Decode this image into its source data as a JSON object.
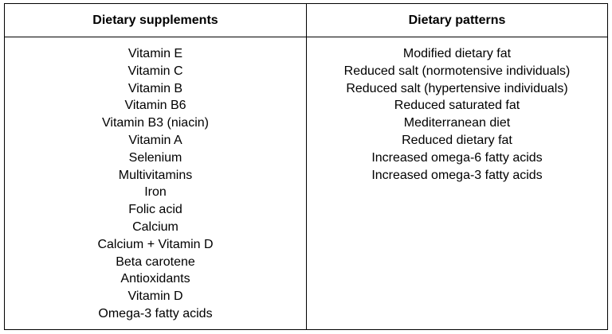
{
  "table": {
    "headers": [
      "Dietary supplements",
      "Dietary patterns"
    ],
    "supplements": [
      "Vitamin E",
      "Vitamin C",
      "Vitamin B",
      "Vitamin B6",
      "Vitamin B3 (niacin)",
      "Vitamin A",
      "Selenium",
      "Multivitamins",
      "Iron",
      "Folic acid",
      "Calcium",
      "Calcium + Vitamin D",
      "Beta carotene",
      "Antioxidants",
      "Vitamin D",
      "Omega-3 fatty acids"
    ],
    "patterns": [
      "Modified dietary fat",
      "Reduced salt (normotensive individuals)",
      "Reduced salt (hypertensive individuals)",
      "Reduced saturated fat",
      "Mediterranean diet",
      "Reduced dietary fat",
      "Increased omega-6 fatty acids",
      "Increased omega-3 fatty acids"
    ]
  }
}
